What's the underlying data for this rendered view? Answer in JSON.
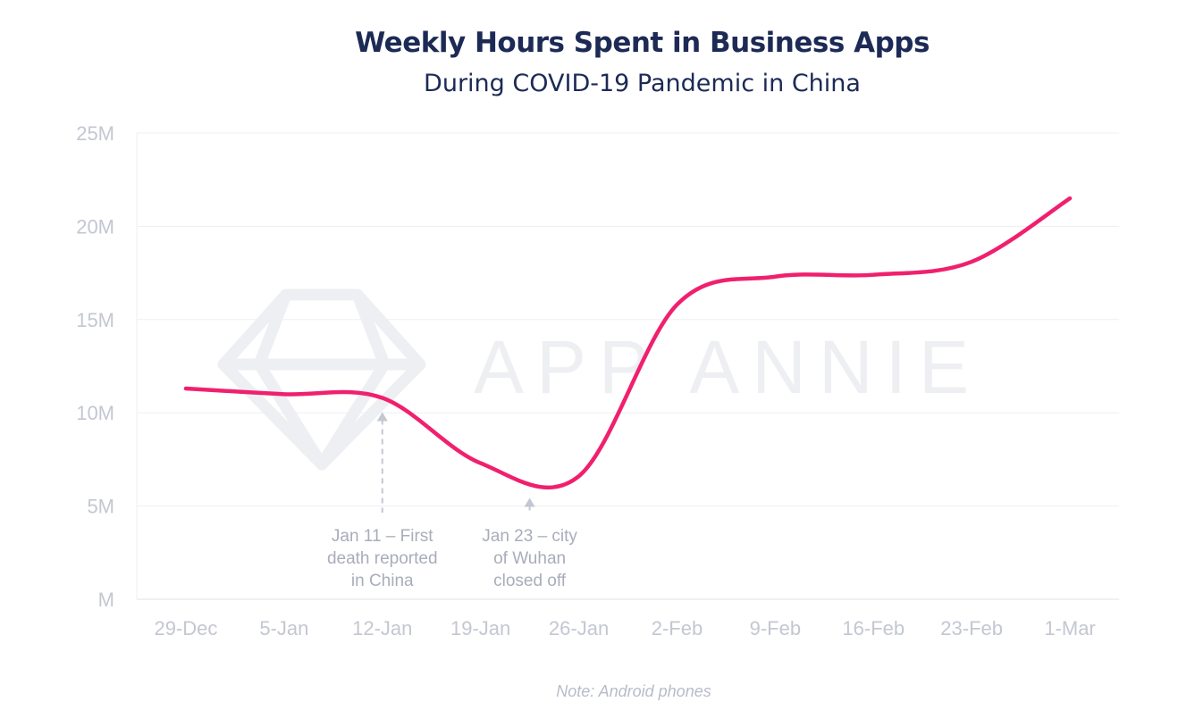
{
  "title": "Weekly Hours Spent in Business Apps",
  "subtitle": "During COVID-19 Pandemic in China",
  "note": "Note: Android phones",
  "watermark": "APP ANNIE",
  "colors": {
    "line": "#f0206e",
    "title": "#1c2a55",
    "axis_text": "#c4c7d2",
    "grid": "#eeeff3",
    "annotation": "#a9adba",
    "watermark": "#eeeff2"
  },
  "chart_data": {
    "type": "line",
    "title": "Weekly Hours Spent in Business Apps",
    "subtitle": "During COVID-19 Pandemic in China",
    "categories": [
      "29-Dec",
      "5-Jan",
      "12-Jan",
      "19-Jan",
      "26-Jan",
      "2-Feb",
      "9-Feb",
      "16-Feb",
      "23-Feb",
      "1-Mar"
    ],
    "series": [
      {
        "values": [
          11.3,
          11.0,
          10.8,
          7.3,
          6.6,
          15.8,
          17.3,
          17.4,
          18.1,
          21.5
        ]
      }
    ],
    "yticks": [
      "M",
      "5M",
      "10M",
      "15M",
      "20M",
      "25M"
    ],
    "ylim": [
      0,
      25
    ],
    "y_unit": "M",
    "grid": true,
    "legend": "none",
    "annotations": [
      {
        "x": 2.0,
        "y": 10.8,
        "lines": [
          "Jan 11 – First",
          "death reported",
          "in China"
        ]
      },
      {
        "x": 3.5,
        "y": 6.2,
        "lines": [
          "Jan 23 – city",
          "of Wuhan",
          "closed off"
        ]
      }
    ]
  }
}
